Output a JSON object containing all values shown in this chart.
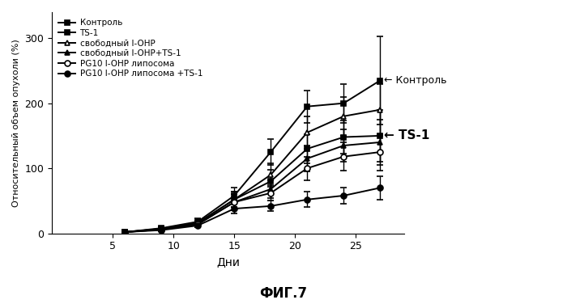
{
  "title": "ФИГ.7",
  "xlabel": "Дни",
  "ylabel": "Относительный объем опухоли (%)",
  "xlim": [
    0,
    29
  ],
  "ylim": [
    0,
    340
  ],
  "yticks": [
    0,
    100,
    200,
    300
  ],
  "xticks": [
    5,
    10,
    15,
    20,
    25
  ],
  "series": [
    {
      "label": "Контроль",
      "marker": "s",
      "marker_fill": "black",
      "x": [
        6,
        9,
        12,
        15,
        18,
        21,
        24,
        27
      ],
      "y": [
        2,
        8,
        18,
        58,
        125,
        195,
        200,
        235
      ],
      "yerr": [
        2,
        3,
        5,
        12,
        20,
        25,
        30,
        68
      ]
    },
    {
      "label": "TS-1",
      "marker": "s",
      "marker_fill": "black",
      "x": [
        6,
        9,
        12,
        15,
        18,
        21,
        24,
        27
      ],
      "y": [
        2,
        7,
        16,
        52,
        80,
        130,
        148,
        150
      ],
      "yerr": [
        2,
        2,
        4,
        12,
        18,
        22,
        25,
        40
      ]
    },
    {
      "label": "свободный l-OHP",
      "marker": "^",
      "marker_fill": "white",
      "x": [
        6,
        9,
        12,
        15,
        18,
        21,
        24,
        27
      ],
      "y": [
        2,
        7,
        16,
        52,
        90,
        155,
        180,
        190
      ],
      "yerr": [
        2,
        2,
        4,
        12,
        18,
        25,
        30,
        40
      ]
    },
    {
      "label": "свободный l-OHP+TS-1",
      "marker": "^",
      "marker_fill": "black",
      "x": [
        6,
        9,
        12,
        15,
        18,
        21,
        24,
        27
      ],
      "y": [
        2,
        6,
        14,
        48,
        68,
        115,
        135,
        140
      ],
      "yerr": [
        2,
        2,
        4,
        12,
        14,
        20,
        25,
        35
      ]
    },
    {
      "label": "PG10 l-OHP липосома",
      "marker": "o",
      "marker_fill": "white",
      "x": [
        6,
        9,
        12,
        15,
        18,
        21,
        24,
        27
      ],
      "y": [
        2,
        6,
        14,
        48,
        62,
        100,
        118,
        125
      ],
      "yerr": [
        2,
        2,
        4,
        12,
        12,
        18,
        22,
        28
      ]
    },
    {
      "label": "PG10 l-OHP липосома +TS-1",
      "marker": "o",
      "marker_fill": "black",
      "x": [
        6,
        9,
        12,
        15,
        18,
        21,
        24,
        27
      ],
      "y": [
        2,
        5,
        12,
        38,
        42,
        52,
        58,
        70
      ],
      "yerr": [
        2,
        2,
        3,
        8,
        8,
        12,
        12,
        18
      ]
    }
  ],
  "ann_kontrol_x": 27.3,
  "ann_kontrol_y": 235,
  "ann_ts1_x": 27.3,
  "ann_ts1_y": 150,
  "bg_color": "#ffffff"
}
